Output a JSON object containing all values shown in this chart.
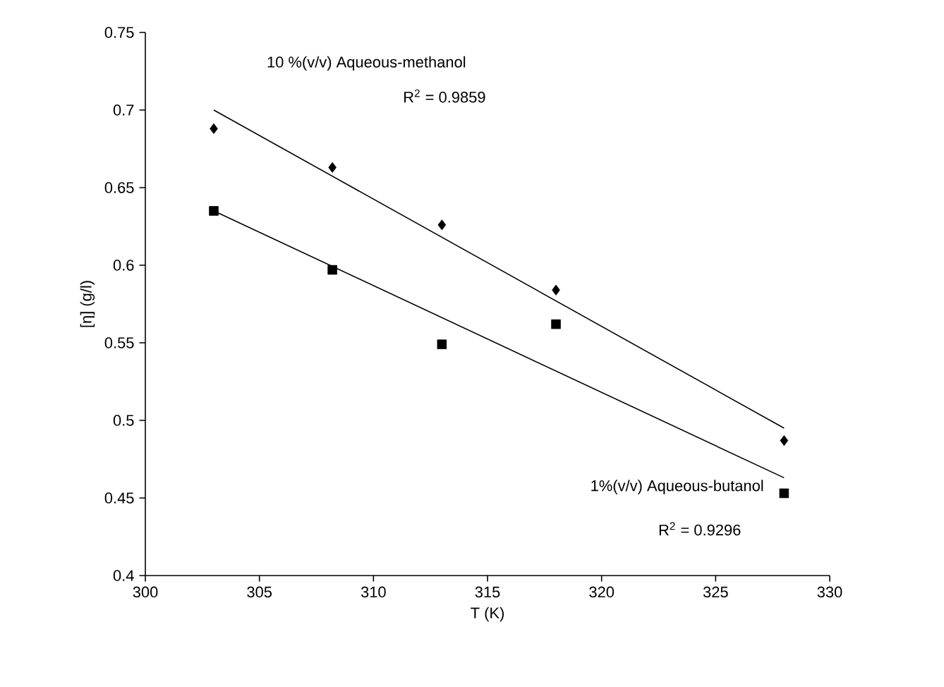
{
  "chart_data": {
    "type": "scatter",
    "xlabel": "T (K)",
    "ylabel": "[η] (g/l)",
    "xlim": [
      300,
      330
    ],
    "xticks": [
      300,
      305,
      310,
      315,
      320,
      325,
      330
    ],
    "ylim": [
      0.4,
      0.75
    ],
    "yticks": [
      0.4,
      0.45,
      0.5,
      0.55,
      0.6,
      0.65,
      0.7,
      0.75
    ],
    "grid": false,
    "series": [
      {
        "marker": "diamond",
        "color": "#000000",
        "x": [
          303,
          308.2,
          313,
          318,
          328
        ],
        "values": [
          0.688,
          0.663,
          0.626,
          0.584,
          0.487
        ]
      },
      {
        "marker": "square",
        "color": "#000000",
        "x": [
          303,
          308.2,
          313,
          318,
          328
        ],
        "values": [
          0.635,
          0.597,
          0.549,
          0.562,
          0.453
        ]
      },
      {
        "type": "line",
        "marker": "none",
        "line_style": "solid",
        "color": "#000000",
        "x": [
          303,
          328
        ],
        "values": [
          0.7,
          0.495
        ]
      },
      {
        "type": "line",
        "marker": "none",
        "line_style": "solid",
        "color": "#000000",
        "x": [
          303,
          328
        ],
        "values": [
          0.635,
          0.463
        ]
      }
    ],
    "annotations": [
      "10 %(v/v) Aqueous-methanol",
      "R$^{2}$ = 0.9859",
      "1%(v/v) Aqueous-butanol",
      "R$^{2}$ = 0.9296"
    ]
  }
}
